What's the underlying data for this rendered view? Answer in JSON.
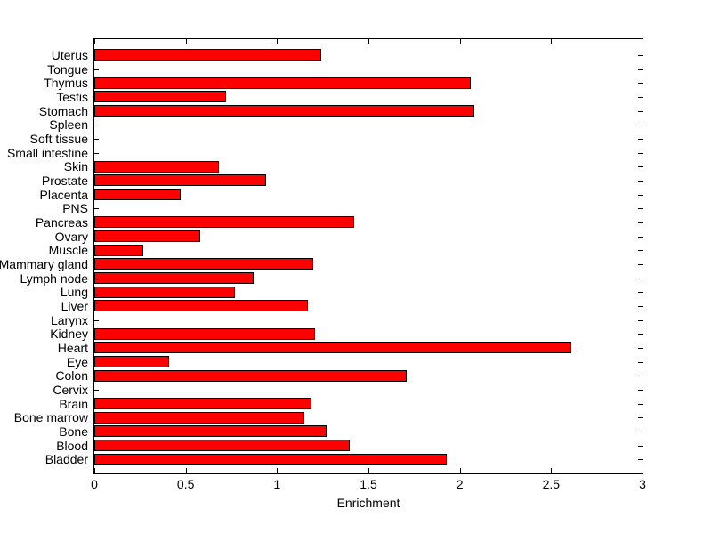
{
  "chart_data": {
    "type": "bar",
    "orientation": "horizontal",
    "title": "",
    "xlabel": "Enrichment",
    "ylabel": "",
    "categories_top_to_bottom": [
      "Uterus",
      "Tongue",
      "Thymus",
      "Testis",
      "Stomach",
      "Spleen",
      "Soft tissue",
      "Small intestine",
      "Skin",
      "Prostate",
      "Placenta",
      "PNS",
      "Pancreas",
      "Ovary",
      "Muscle",
      "Mammary gland",
      "Lymph node",
      "Lung",
      "Liver",
      "Larynx",
      "Kidney",
      "Heart",
      "Eye",
      "Colon",
      "Cervix",
      "Brain",
      "Bone marrow",
      "Bone",
      "Blood",
      "Bladder"
    ],
    "values_top_to_bottom": [
      1.24,
      0,
      2.06,
      0.72,
      2.08,
      0,
      0,
      0,
      0.68,
      0.94,
      0.47,
      0,
      1.42,
      0.58,
      0.27,
      1.2,
      0.87,
      0.77,
      1.17,
      0,
      1.21,
      2.61,
      0.41,
      1.71,
      0,
      1.19,
      1.15,
      1.27,
      1.4,
      1.93
    ],
    "xlim": [
      0,
      3
    ],
    "x_ticks": [
      0,
      0.5,
      1,
      1.5,
      2,
      2.5,
      3
    ],
    "x_tick_labels": [
      "0",
      "0.5",
      "1",
      "1.5",
      "2",
      "2.5",
      "3"
    ],
    "grid": false,
    "legend": "none",
    "bar_color": "#ff0000",
    "bar_edge_color": "#000000",
    "axis_color": "#000000",
    "background_color": "#ffffff"
  }
}
